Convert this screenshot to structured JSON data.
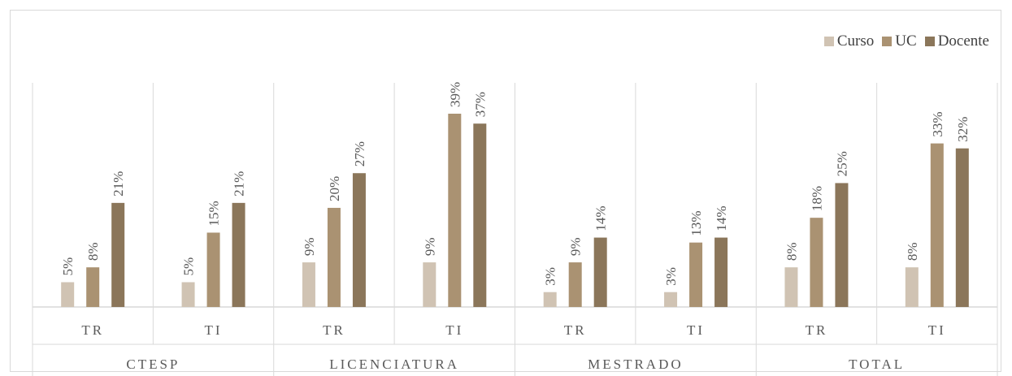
{
  "chart_data": {
    "type": "bar",
    "title": "",
    "xlabel": "",
    "ylabel": "",
    "ylim": [
      0,
      45
    ],
    "grid": false,
    "legend_position": "top-right",
    "groups": [
      {
        "name": "CTESP",
        "categories": [
          "TR",
          "TI"
        ]
      },
      {
        "name": "LICENCIATURA",
        "categories": [
          "TR",
          "TI"
        ]
      },
      {
        "name": "MESTRADO",
        "categories": [
          "TR",
          "TI"
        ]
      },
      {
        "name": "TOTAL",
        "categories": [
          "TR",
          "TI"
        ]
      }
    ],
    "series": [
      {
        "name": "Curso",
        "color": "#d0c3b3",
        "values": [
          5,
          5,
          9,
          9,
          3,
          3,
          8,
          8
        ]
      },
      {
        "name": "UC",
        "color": "#aa9272",
        "values": [
          8,
          15,
          20,
          39,
          9,
          13,
          18,
          33
        ]
      },
      {
        "name": "Docente",
        "color": "#8b765a",
        "values": [
          21,
          21,
          27,
          37,
          14,
          14,
          25,
          32
        ]
      }
    ],
    "value_suffix": "%"
  }
}
